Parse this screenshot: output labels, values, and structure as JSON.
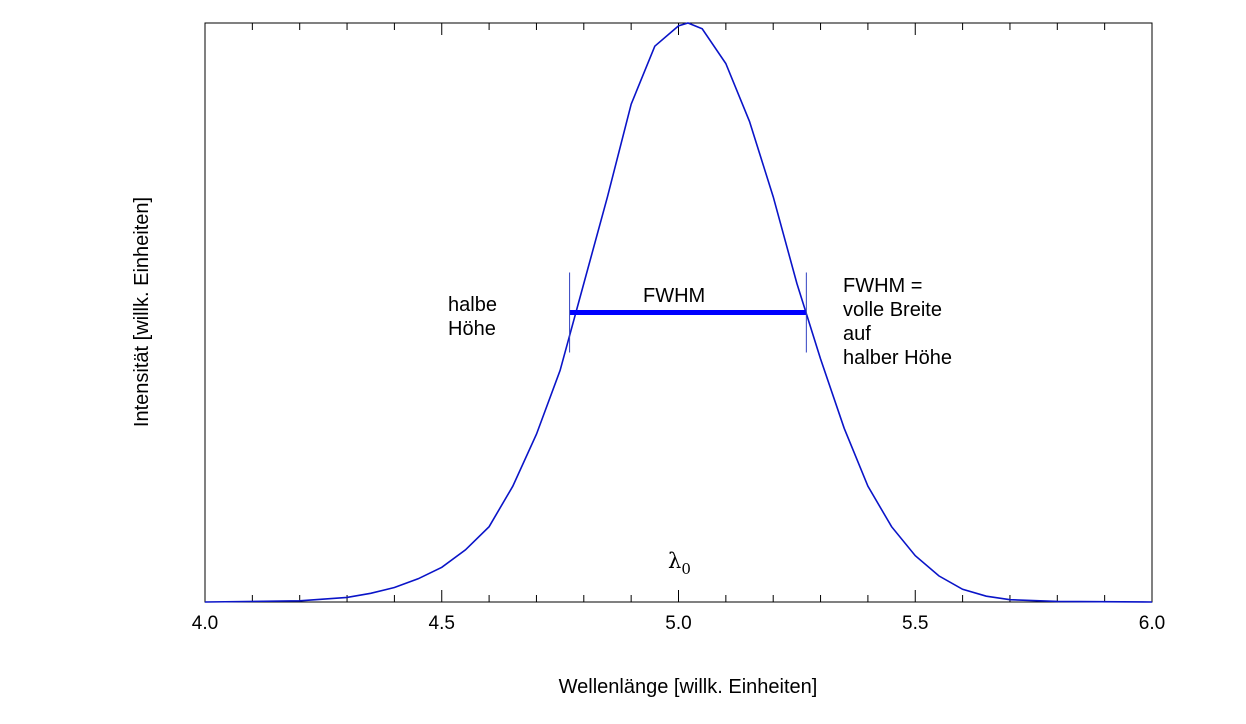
{
  "chart_data": {
    "type": "line",
    "title": "",
    "xlabel": "Wellenlänge [willk. Einheiten]",
    "ylabel": "Intensität [willk. Einheiten]",
    "xlim": [
      4.0,
      6.0
    ],
    "ylim": [
      0,
      1.0
    ],
    "x_tick_labels": [
      "4.0",
      "4.5",
      "5.0",
      "5.5",
      "6.0"
    ],
    "x_ticks": [
      4.0,
      4.5,
      5.0,
      5.5,
      6.0
    ],
    "x_minor_step": 0.1,
    "y_ticks_shown": false,
    "grid": false,
    "series": [
      {
        "color": "#0a14c8",
        "x": [
          4.0,
          4.2,
          4.3,
          4.35,
          4.4,
          4.45,
          4.5,
          4.55,
          4.6,
          4.65,
          4.7,
          4.75,
          4.8,
          4.85,
          4.9,
          4.95,
          5.0,
          5.02,
          5.05,
          5.1,
          5.15,
          5.2,
          5.25,
          5.3,
          5.35,
          5.4,
          5.45,
          5.5,
          5.55,
          5.6,
          5.65,
          5.7,
          5.8,
          6.0
        ],
        "y": [
          0.0,
          0.002,
          0.008,
          0.015,
          0.025,
          0.04,
          0.06,
          0.09,
          0.13,
          0.2,
          0.29,
          0.4,
          0.55,
          0.7,
          0.86,
          0.96,
          0.995,
          1.0,
          0.99,
          0.93,
          0.83,
          0.7,
          0.55,
          0.42,
          0.3,
          0.2,
          0.13,
          0.08,
          0.045,
          0.022,
          0.01,
          0.004,
          0.001,
          0.0
        ]
      }
    ],
    "fwhm_bar": {
      "x_start": 4.77,
      "x_end": 5.27,
      "y": 0.5,
      "color": "#0000ff"
    },
    "annotations": {
      "half_height_line1": "halbe",
      "half_height_line2": "Höhe",
      "fwhm_label": "FWHM",
      "definition_lines": [
        "FWHM =",
        "volle Breite",
        "auf",
        "halber Höhe"
      ],
      "peak_symbol": "λ",
      "peak_subscript": "0"
    }
  }
}
